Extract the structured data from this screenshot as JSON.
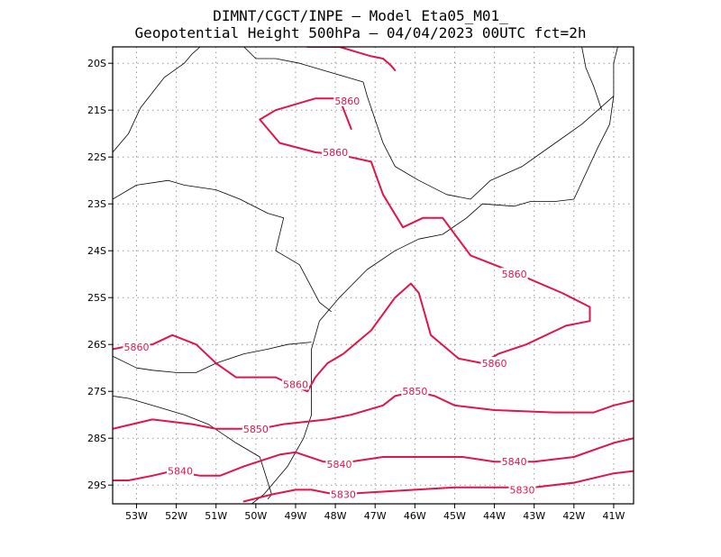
{
  "header": {
    "line1": "DIMNT/CGCT/INPE –  Model Eta05_M01_",
    "line2": "Geopotential Height 500hPa –  04/04/2023 00UTC fct=2h"
  },
  "axes": {
    "lon_min": -53.6,
    "lon_max": -40.5,
    "lat_min": -29.4,
    "lat_max": -19.65,
    "x_ticks": [
      {
        "value": -53,
        "label": "53W"
      },
      {
        "value": -52,
        "label": "52W"
      },
      {
        "value": -51,
        "label": "51W"
      },
      {
        "value": -50,
        "label": "50W"
      },
      {
        "value": -49,
        "label": "49W"
      },
      {
        "value": -48,
        "label": "48W"
      },
      {
        "value": -47,
        "label": "47W"
      },
      {
        "value": -46,
        "label": "46W"
      },
      {
        "value": -45,
        "label": "45W"
      },
      {
        "value": -44,
        "label": "44W"
      },
      {
        "value": -43,
        "label": "43W"
      },
      {
        "value": -42,
        "label": "42W"
      },
      {
        "value": -41,
        "label": "41W"
      }
    ],
    "y_ticks": [
      {
        "value": -20,
        "label": "20S"
      },
      {
        "value": -21,
        "label": "21S"
      },
      {
        "value": -22,
        "label": "22S"
      },
      {
        "value": -23,
        "label": "23S"
      },
      {
        "value": -24,
        "label": "24S"
      },
      {
        "value": -25,
        "label": "25S"
      },
      {
        "value": -26,
        "label": "26S"
      },
      {
        "value": -27,
        "label": "27S"
      },
      {
        "value": -28,
        "label": "28S"
      },
      {
        "value": -29,
        "label": "29S"
      }
    ],
    "grid": true,
    "grid_style": "dotted"
  },
  "colors": {
    "contour": "#e0154a",
    "coast": "#000000",
    "grid": "#999999"
  },
  "chart_data": {
    "type": "contour_map",
    "variable": "Geopotential Height 500hPa",
    "contours": [
      {
        "level": 5860,
        "segment": "north-closed",
        "points": [
          [
            -47.6,
            -21.4
          ],
          [
            -47.9,
            -20.75
          ],
          [
            -48.5,
            -20.75
          ],
          [
            -49.5,
            -21.0
          ],
          [
            -49.9,
            -21.2
          ],
          [
            -49.4,
            -21.7
          ],
          [
            -48.5,
            -21.9
          ],
          [
            -47.9,
            -21.95
          ],
          [
            -47.1,
            -22.1
          ],
          [
            -46.8,
            -22.8
          ],
          [
            -46.3,
            -23.5
          ],
          [
            -45.8,
            -23.3
          ],
          [
            -45.3,
            -23.3
          ],
          [
            -44.6,
            -24.1
          ],
          [
            -43.4,
            -24.5
          ],
          [
            -42.3,
            -24.9
          ],
          [
            -41.6,
            -25.2
          ],
          [
            -41.6,
            -25.5
          ],
          [
            -42.2,
            -25.6
          ],
          [
            -43.2,
            -26.0
          ],
          [
            -43.9,
            -26.2
          ],
          [
            -44.3,
            -26.4
          ],
          [
            -44.9,
            -26.3
          ],
          [
            -45.6,
            -25.8
          ],
          [
            -45.8,
            -25.2
          ],
          [
            -45.9,
            -24.9
          ],
          [
            -46.1,
            -24.7
          ],
          [
            -46.5,
            -25.0
          ],
          [
            -47.1,
            -25.7
          ],
          [
            -47.8,
            -26.2
          ],
          [
            -48.2,
            -26.4
          ],
          [
            -48.5,
            -26.7
          ],
          [
            -48.7,
            -27.0
          ],
          [
            -49.0,
            -26.9
          ],
          [
            -49.5,
            -26.7
          ],
          [
            -50.5,
            -26.7
          ],
          [
            -51.0,
            -26.4
          ],
          [
            -51.5,
            -26.0
          ],
          [
            -52.1,
            -25.8
          ],
          [
            -52.6,
            -26.0
          ],
          [
            -53.0,
            -26.0
          ],
          [
            -53.6,
            -26.1
          ]
        ]
      },
      {
        "level": 5850,
        "points": [
          [
            -53.6,
            -27.8
          ],
          [
            -52.6,
            -27.6
          ],
          [
            -51.6,
            -27.7
          ],
          [
            -51.0,
            -27.8
          ],
          [
            -50.5,
            -27.8
          ],
          [
            -49.9,
            -27.8
          ],
          [
            -49.3,
            -27.7
          ],
          [
            -48.2,
            -27.6
          ],
          [
            -47.6,
            -27.5
          ],
          [
            -46.8,
            -27.3
          ],
          [
            -46.5,
            -27.1
          ],
          [
            -46.0,
            -27.0
          ],
          [
            -45.5,
            -27.1
          ],
          [
            -45.0,
            -27.3
          ],
          [
            -44.0,
            -27.4
          ],
          [
            -42.5,
            -27.45
          ],
          [
            -41.5,
            -27.45
          ],
          [
            -41.0,
            -27.3
          ],
          [
            -40.5,
            -27.2
          ]
        ]
      },
      {
        "level": 5840,
        "points": [
          [
            -53.6,
            -28.9
          ],
          [
            -53.2,
            -28.9
          ],
          [
            -52.6,
            -28.8
          ],
          [
            -52.1,
            -28.7
          ],
          [
            -51.4,
            -28.8
          ],
          [
            -50.9,
            -28.8
          ],
          [
            -50.3,
            -28.6
          ],
          [
            -49.4,
            -28.35
          ],
          [
            -49.0,
            -28.3
          ],
          [
            -48.3,
            -28.5
          ],
          [
            -47.6,
            -28.5
          ],
          [
            -46.8,
            -28.4
          ],
          [
            -45.8,
            -28.4
          ],
          [
            -44.8,
            -28.4
          ],
          [
            -44.0,
            -28.5
          ],
          [
            -43.0,
            -28.5
          ],
          [
            -42.0,
            -28.4
          ],
          [
            -41.0,
            -28.1
          ],
          [
            -40.5,
            -28.0
          ]
        ]
      },
      {
        "level": 5830,
        "points": [
          [
            -50.3,
            -29.35
          ],
          [
            -49.6,
            -29.2
          ],
          [
            -49.0,
            -29.1
          ],
          [
            -48.6,
            -29.1
          ],
          [
            -48.0,
            -29.2
          ],
          [
            -47.0,
            -29.15
          ],
          [
            -46.0,
            -29.1
          ],
          [
            -45.0,
            -29.05
          ],
          [
            -44.0,
            -29.05
          ],
          [
            -43.0,
            -29.05
          ],
          [
            -42.0,
            -28.95
          ],
          [
            -41.0,
            -28.75
          ],
          [
            -40.5,
            -28.7
          ]
        ]
      },
      {
        "level": 5860,
        "segment": "top-edge",
        "points": [
          [
            -48.7,
            -19.65
          ],
          [
            -47.9,
            -19.65
          ],
          [
            -47.5,
            -19.75
          ],
          [
            -47.1,
            -19.85
          ],
          [
            -46.8,
            -19.9
          ],
          [
            -46.6,
            -20.05
          ],
          [
            -46.5,
            -20.15
          ]
        ]
      }
    ],
    "contour_labels": [
      {
        "text": "5860",
        "lon": -47.7,
        "lat": -20.8
      },
      {
        "text": "5860",
        "lon": -48.0,
        "lat": -21.9
      },
      {
        "text": "5860",
        "lon": -43.5,
        "lat": -24.5
      },
      {
        "text": "5860",
        "lon": -53.0,
        "lat": -26.05
      },
      {
        "text": "5860",
        "lon": -49.0,
        "lat": -26.85
      },
      {
        "text": "5860",
        "lon": -44.0,
        "lat": -26.4
      },
      {
        "text": "5850",
        "lon": -46.0,
        "lat": -27.0
      },
      {
        "text": "5850",
        "lon": -50.0,
        "lat": -27.8
      },
      {
        "text": "5840",
        "lon": -51.9,
        "lat": -28.7
      },
      {
        "text": "5840",
        "lon": -47.9,
        "lat": -28.55
      },
      {
        "text": "5840",
        "lon": -43.5,
        "lat": -28.5
      },
      {
        "text": "5830",
        "lon": -47.8,
        "lat": -29.2
      },
      {
        "text": "5830",
        "lon": -43.3,
        "lat": -29.1
      }
    ],
    "boundaries": [
      {
        "name": "coastline",
        "points": [
          [
            -40.9,
            -19.65
          ],
          [
            -41.0,
            -20.0
          ],
          [
            -41.0,
            -20.7
          ],
          [
            -41.1,
            -21.3
          ],
          [
            -41.4,
            -21.8
          ],
          [
            -42.0,
            -22.9
          ],
          [
            -42.5,
            -22.95
          ],
          [
            -43.1,
            -22.95
          ],
          [
            -43.5,
            -23.05
          ],
          [
            -44.3,
            -23.0
          ],
          [
            -44.7,
            -23.3
          ],
          [
            -45.3,
            -23.65
          ],
          [
            -45.9,
            -23.75
          ],
          [
            -46.5,
            -24.0
          ],
          [
            -47.2,
            -24.4
          ],
          [
            -47.9,
            -25.0
          ],
          [
            -48.4,
            -25.5
          ],
          [
            -48.6,
            -26.1
          ],
          [
            -48.6,
            -26.8
          ],
          [
            -48.6,
            -27.5
          ],
          [
            -48.8,
            -28.0
          ],
          [
            -49.2,
            -28.6
          ],
          [
            -49.8,
            -29.2
          ],
          [
            -50.1,
            -29.4
          ]
        ]
      },
      {
        "name": "state-line",
        "points": [
          [
            -53.6,
            -22.9
          ],
          [
            -53.0,
            -22.6
          ],
          [
            -52.2,
            -22.5
          ],
          [
            -51.8,
            -22.6
          ],
          [
            -51.0,
            -22.7
          ],
          [
            -50.4,
            -22.9
          ],
          [
            -49.7,
            -23.2
          ],
          [
            -49.3,
            -23.3
          ],
          [
            -49.5,
            -24.0
          ],
          [
            -48.9,
            -24.3
          ],
          [
            -48.4,
            -25.1
          ],
          [
            -48.1,
            -25.3
          ]
        ]
      },
      {
        "name": "state-line",
        "points": [
          [
            -53.6,
            -26.25
          ],
          [
            -53.0,
            -26.5
          ],
          [
            -52.6,
            -26.55
          ],
          [
            -52.0,
            -26.6
          ],
          [
            -51.5,
            -26.6
          ],
          [
            -51.0,
            -26.4
          ],
          [
            -50.3,
            -26.2
          ],
          [
            -49.7,
            -26.1
          ],
          [
            -49.2,
            -26.0
          ],
          [
            -48.6,
            -25.95
          ]
        ]
      },
      {
        "name": "state-line",
        "points": [
          [
            -53.6,
            -27.1
          ],
          [
            -53.2,
            -27.15
          ],
          [
            -52.6,
            -27.3
          ],
          [
            -51.8,
            -27.5
          ],
          [
            -51.2,
            -27.7
          ],
          [
            -50.5,
            -28.1
          ],
          [
            -49.9,
            -28.4
          ],
          [
            -49.6,
            -29.2
          ],
          [
            -49.7,
            -29.3
          ]
        ]
      },
      {
        "name": "state-line",
        "points": [
          [
            -53.6,
            -21.9
          ],
          [
            -53.2,
            -21.5
          ],
          [
            -52.9,
            -20.95
          ],
          [
            -52.3,
            -20.3
          ],
          [
            -51.8,
            -20.0
          ],
          [
            -51.6,
            -19.8
          ],
          [
            -51.4,
            -19.65
          ]
        ]
      },
      {
        "name": "state-line",
        "points": [
          [
            -49.5,
            -19.9
          ],
          [
            -48.9,
            -20.0
          ],
          [
            -48.3,
            -20.15
          ],
          [
            -47.7,
            -20.3
          ],
          [
            -47.3,
            -20.4
          ],
          [
            -47.2,
            -20.7
          ],
          [
            -47.0,
            -21.2
          ],
          [
            -46.8,
            -21.7
          ],
          [
            -46.5,
            -22.2
          ],
          [
            -45.9,
            -22.5
          ],
          [
            -45.2,
            -22.8
          ],
          [
            -44.6,
            -22.9
          ],
          [
            -44.1,
            -22.5
          ],
          [
            -43.3,
            -22.2
          ],
          [
            -42.8,
            -21.9
          ],
          [
            -41.8,
            -21.3
          ],
          [
            -41.4,
            -21.0
          ],
          [
            -41.0,
            -20.7
          ]
        ]
      },
      {
        "name": "state-line",
        "points": [
          [
            -41.3,
            -21.0
          ],
          [
            -41.5,
            -20.5
          ],
          [
            -41.7,
            -20.1
          ],
          [
            -41.8,
            -19.65
          ]
        ]
      },
      {
        "name": "state-line",
        "points": [
          [
            -50.3,
            -19.65
          ],
          [
            -50.0,
            -19.9
          ],
          [
            -49.5,
            -19.9
          ]
        ]
      }
    ]
  }
}
